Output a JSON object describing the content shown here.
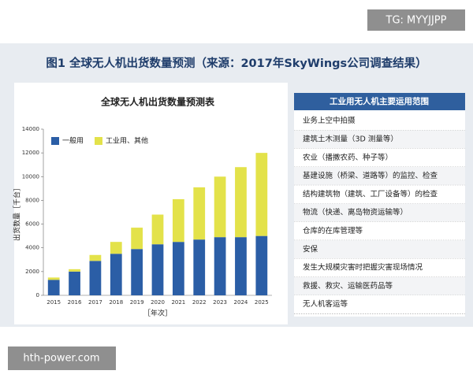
{
  "watermarks": {
    "top": "TG: MYYJJPP",
    "bottom": "hth-power.com"
  },
  "figure_title": "图1 全球无人机出货数量预测（来源：2017年SkyWings公司调查结果）",
  "chart_data": {
    "type": "bar",
    "stacked": true,
    "title": "全球无人机出货数量预测表",
    "x_label": "［年次］",
    "y_label": "出货数量［千台］",
    "categories": [
      "2015",
      "2016",
      "2017",
      "2018",
      "2019",
      "2020",
      "2021",
      "2022",
      "2023",
      "2024",
      "2025"
    ],
    "series": [
      {
        "name": "一般用",
        "color": "#2b5ea6",
        "values": [
          1300,
          2000,
          2900,
          3500,
          3900,
          4300,
          4500,
          4700,
          4900,
          4900,
          5000
        ]
      },
      {
        "name": "工业用、其他",
        "color": "#e3e24a",
        "values": [
          200,
          200,
          500,
          1000,
          1800,
          2500,
          3600,
          4400,
          5100,
          5900,
          7000
        ]
      }
    ],
    "ylim": [
      0,
      14000
    ],
    "yticks": [
      0,
      2000,
      4000,
      6000,
      8000,
      10000,
      12000,
      14000
    ],
    "grid": false,
    "legend": "upper left"
  },
  "table": {
    "header": "工业用无人机主要运用范围",
    "rows": [
      "业务上空中拍摄",
      "建筑土木测量（3D 测量等）",
      "农业（播撒农药、种子等）",
      "基建设施（桥梁、道路等）的监控、检查",
      "结构建筑物（建筑、工厂设备等）的检查",
      "物流（快递、离岛物资运输等）",
      "仓库的在库管理等",
      "安保",
      "发生大规模灾害时把握灾害现场情况",
      "救援、救灾、运输医药品等",
      "无人机客运等"
    ]
  }
}
